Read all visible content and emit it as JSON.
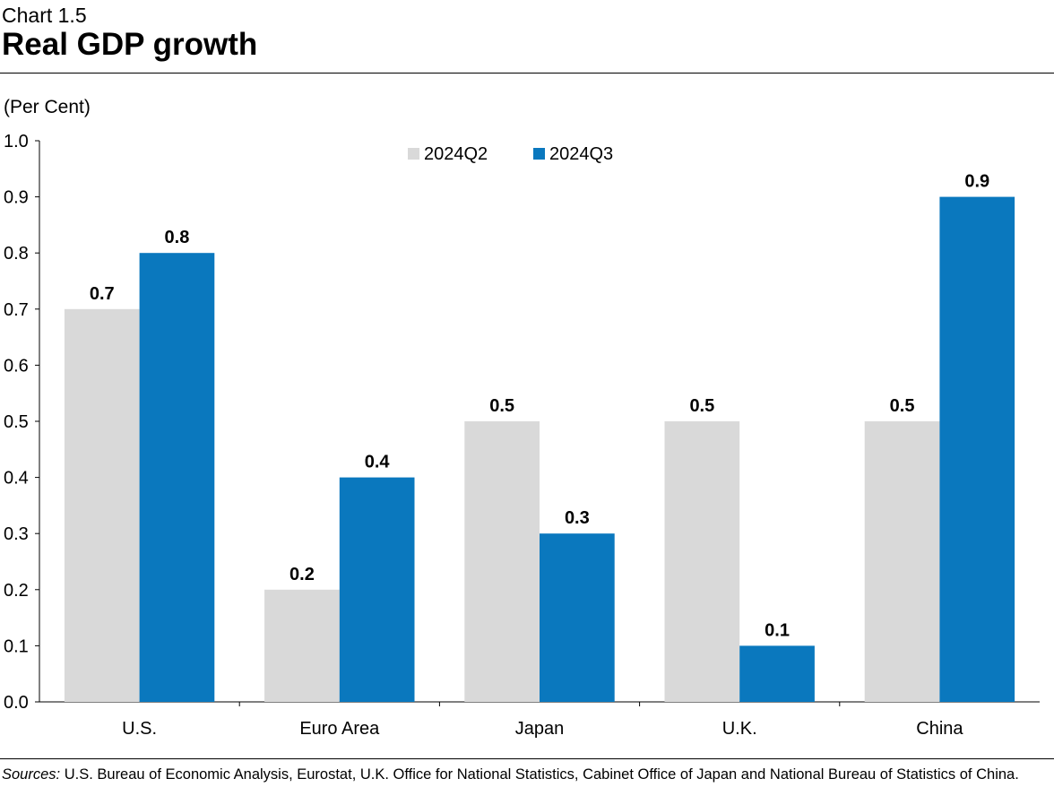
{
  "header": {
    "chart_number": "Chart 1.5",
    "title": "Real GDP growth"
  },
  "unit_label": "(Per Cent)",
  "chart_data": {
    "type": "bar",
    "title": "Real GDP growth",
    "xlabel": "",
    "ylabel": "(Per Cent)",
    "ylim": [
      0.0,
      1.0
    ],
    "yticks": [
      "0.0",
      "0.1",
      "0.2",
      "0.3",
      "0.4",
      "0.5",
      "0.6",
      "0.7",
      "0.8",
      "0.9",
      "1.0"
    ],
    "legend_position": "top-center",
    "grid": false,
    "categories": [
      "U.S.",
      "Euro Area",
      "Japan",
      "U.K.",
      "China"
    ],
    "series": [
      {
        "name": "2024Q2",
        "color": "#d9d9d9",
        "values": [
          0.7,
          0.2,
          0.5,
          0.5,
          0.5
        ]
      },
      {
        "name": "2024Q3",
        "color": "#0a78be",
        "values": [
          0.8,
          0.4,
          0.3,
          0.1,
          0.9
        ]
      }
    ]
  },
  "footer": {
    "sources_label": "Sources:",
    "sources_text": " U.S. Bureau of Economic Analysis, Eurostat, U.K. Office for National Statistics, Cabinet Office of Japan and National Bureau of Statistics of China."
  }
}
